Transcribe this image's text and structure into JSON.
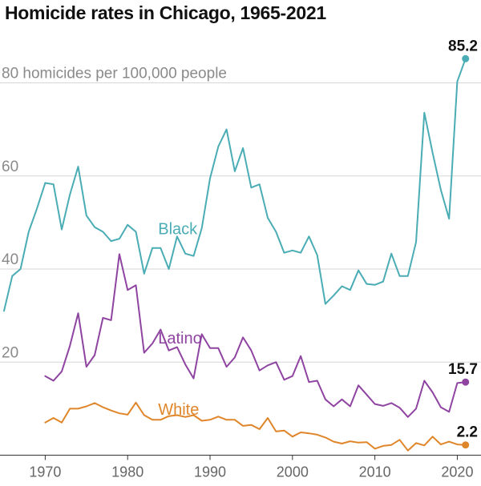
{
  "chart_data": {
    "type": "line",
    "title": "Homicide rates in Chicago, 1965-2021",
    "ylabel_inline": "80 homicides per 100,000 people",
    "y_ticks": [
      {
        "value": 20,
        "label": "20"
      },
      {
        "value": 40,
        "label": "40"
      },
      {
        "value": 60,
        "label": "60"
      },
      {
        "value": 80,
        "label": "80 homicides per 100,000 people"
      }
    ],
    "x_ticks": [
      {
        "value": 1970,
        "label": "1970"
      },
      {
        "value": 1980,
        "label": "1980"
      },
      {
        "value": 1990,
        "label": "1990"
      },
      {
        "value": 2000,
        "label": "2000"
      },
      {
        "value": 2010,
        "label": "2010"
      },
      {
        "value": 2020,
        "label": "2020"
      }
    ],
    "xlim": [
      1965,
      2022
    ],
    "ylim": [
      0,
      88
    ],
    "grid": true,
    "series": [
      {
        "name": "Black",
        "color": "#4aacb4",
        "label_year": 1983.7,
        "label_value": 47.5,
        "end_label": "85.2",
        "x": [
          1965,
          1966,
          1967,
          1968,
          1969,
          1970,
          1971,
          1972,
          1973,
          1974,
          1975,
          1976,
          1977,
          1978,
          1979,
          1980,
          1981,
          1982,
          1983,
          1984,
          1985,
          1986,
          1987,
          1988,
          1989,
          1990,
          1991,
          1992,
          1993,
          1994,
          1995,
          1996,
          1997,
          1998,
          1999,
          2000,
          2001,
          2002,
          2003,
          2004,
          2005,
          2006,
          2007,
          2008,
          2009,
          2010,
          2011,
          2012,
          2013,
          2014,
          2015,
          2016,
          2017,
          2018,
          2019,
          2020,
          2021
        ],
        "values": [
          31,
          38.5,
          40,
          48,
          53,
          58.5,
          58.2,
          48.5,
          56,
          62,
          51.5,
          49,
          48,
          46,
          46.5,
          49.5,
          48,
          39,
          44.5,
          44.5,
          40,
          47,
          43.3,
          42.8,
          48.8,
          59.5,
          66.3,
          70,
          61,
          66,
          57.5,
          58.2,
          51,
          48,
          43.5,
          44,
          43.5,
          47,
          43,
          32.5,
          34.3,
          36.3,
          35.5,
          39.7,
          36.8,
          36.6,
          37.3,
          43.3,
          38.5,
          38.5,
          45.8,
          73.6,
          65,
          57,
          50.8,
          80.3,
          85.2
        ]
      },
      {
        "name": "Latino",
        "color": "#8e44a0",
        "label_year": 1983.7,
        "label_value": 24,
        "end_label": "15.7",
        "x": [
          1970,
          1971,
          1972,
          1973,
          1974,
          1975,
          1976,
          1977,
          1978,
          1979,
          1980,
          1981,
          1982,
          1983,
          1984,
          1985,
          1986,
          1987,
          1988,
          1989,
          1990,
          1991,
          1992,
          1993,
          1994,
          1995,
          1996,
          1997,
          1998,
          1999,
          2000,
          2001,
          2002,
          2003,
          2004,
          2005,
          2006,
          2007,
          2008,
          2009,
          2010,
          2011,
          2012,
          2013,
          2014,
          2015,
          2016,
          2017,
          2018,
          2019,
          2020,
          2021
        ],
        "values": [
          17,
          16,
          18,
          23.5,
          30.5,
          19,
          21.5,
          29.5,
          29,
          43.2,
          35.5,
          36.5,
          22,
          24,
          27,
          22.5,
          23.2,
          19.5,
          16.5,
          26,
          23,
          23,
          19,
          21,
          25.3,
          22.5,
          18.2,
          19.3,
          20,
          16.2,
          17,
          21.3,
          15.7,
          16,
          12,
          10.5,
          12,
          10.5,
          15,
          13,
          11,
          10.6,
          11.2,
          10.2,
          8.2,
          10,
          16,
          13.5,
          10.3,
          9.3,
          15.5,
          15.7
        ]
      },
      {
        "name": "White",
        "color": "#e0862a",
        "label_year": 1983.7,
        "label_value": 8.7,
        "end_label": "2.2",
        "x": [
          1970,
          1971,
          1972,
          1973,
          1974,
          1975,
          1976,
          1977,
          1978,
          1979,
          1980,
          1981,
          1982,
          1983,
          1984,
          1985,
          1986,
          1987,
          1988,
          1989,
          1990,
          1991,
          1992,
          1993,
          1994,
          1995,
          1996,
          1997,
          1998,
          1999,
          2000,
          2001,
          2002,
          2003,
          2004,
          2005,
          2006,
          2007,
          2008,
          2009,
          2010,
          2011,
          2012,
          2013,
          2014,
          2015,
          2016,
          2017,
          2018,
          2019,
          2020,
          2021
        ],
        "values": [
          7,
          8,
          7,
          10,
          10,
          10.5,
          11.2,
          10.3,
          9.6,
          9,
          8.7,
          11.3,
          8.6,
          7.6,
          7.6,
          8.4,
          8.6,
          8.2,
          8.6,
          7.4,
          7.6,
          8.3,
          7.6,
          7.6,
          6.3,
          6.5,
          5.6,
          8,
          5.1,
          5.3,
          4,
          4.9,
          4.7,
          4.4,
          3.8,
          2.9,
          2.5,
          3,
          2.7,
          2.8,
          1.4,
          2,
          2.2,
          3.3,
          1,
          2.6,
          2.1,
          4,
          2.3,
          2.9,
          2.3,
          2.2
        ]
      }
    ]
  }
}
